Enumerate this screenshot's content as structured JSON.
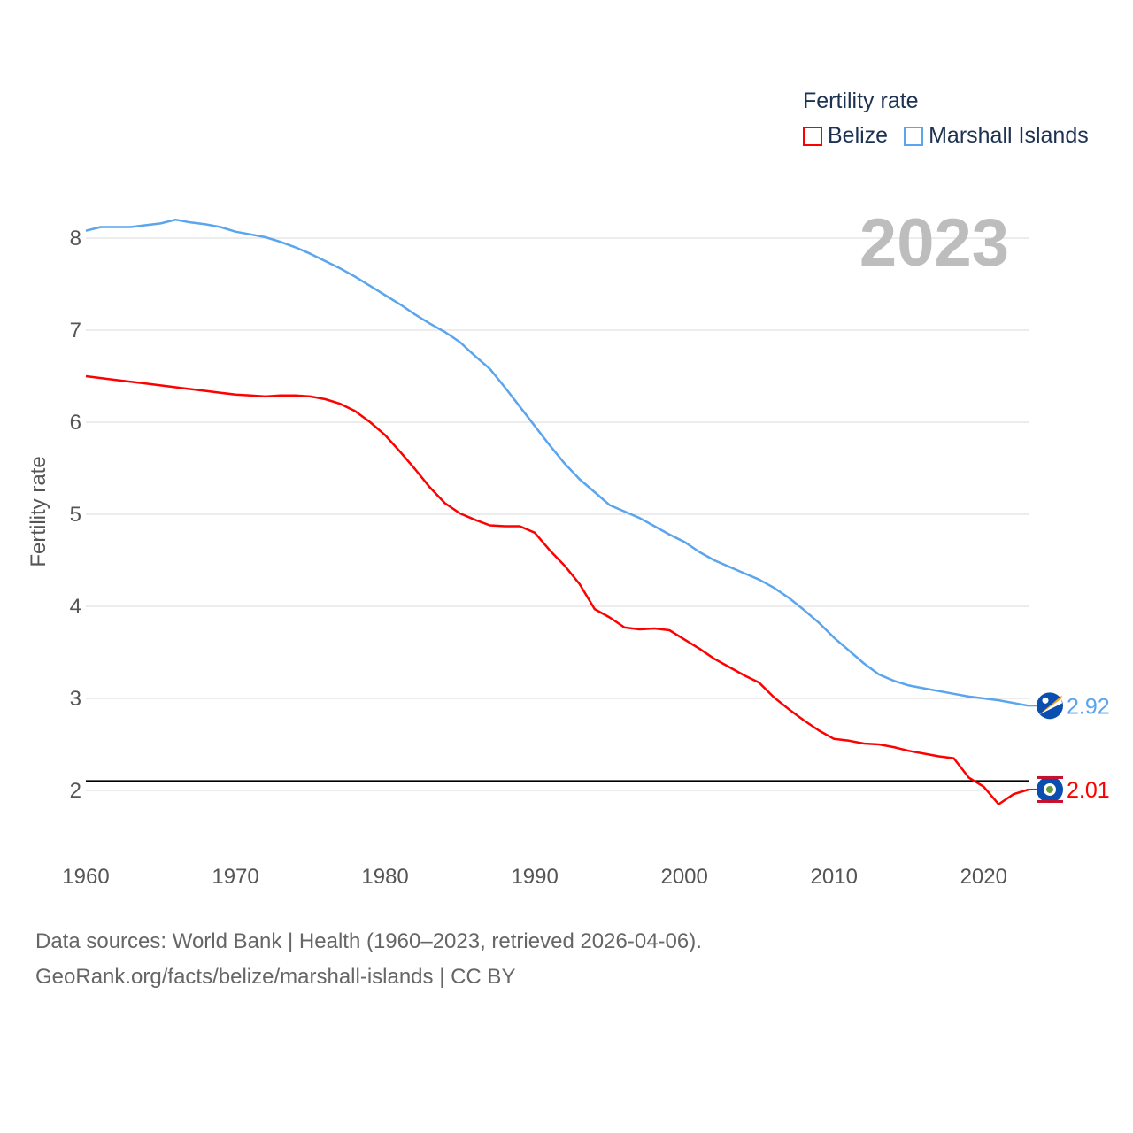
{
  "legend": {
    "title": "Fertility rate",
    "items": [
      {
        "label": "Belize",
        "color": "#ff0000"
      },
      {
        "label": "Marshall Islands",
        "color": "#5aa5ee"
      }
    ]
  },
  "year_label": "2023",
  "footer": {
    "line1": "Data sources: World Bank | Health (1960–2023, retrieved 2026-04-06).",
    "line2": "GeoRank.org/facts/belize/marshall-islands | CC BY"
  },
  "chart_data": {
    "type": "line",
    "title": "Fertility rate",
    "xlabel": "",
    "ylabel": "Fertility rate",
    "xlim": [
      1960,
      2023
    ],
    "ylim": [
      1.5,
      8.5
    ],
    "grid": true,
    "legend_position": "top-right",
    "x_ticks": [
      "1960",
      "1970",
      "1980",
      "1990",
      "2000",
      "2010",
      "2020"
    ],
    "y_ticks": [
      "2",
      "3",
      "4",
      "5",
      "6",
      "7",
      "8"
    ],
    "reference_line": {
      "value": 2.1,
      "color": "#000000"
    },
    "x": [
      1960,
      1961,
      1962,
      1963,
      1964,
      1965,
      1966,
      1967,
      1968,
      1969,
      1970,
      1971,
      1972,
      1973,
      1974,
      1975,
      1976,
      1977,
      1978,
      1979,
      1980,
      1981,
      1982,
      1983,
      1984,
      1985,
      1986,
      1987,
      1988,
      1989,
      1990,
      1991,
      1992,
      1993,
      1994,
      1995,
      1996,
      1997,
      1998,
      1999,
      2000,
      2001,
      2002,
      2003,
      2004,
      2005,
      2006,
      2007,
      2008,
      2009,
      2010,
      2011,
      2012,
      2013,
      2014,
      2015,
      2016,
      2017,
      2018,
      2019,
      2020,
      2021,
      2022,
      2023
    ],
    "series": [
      {
        "name": "Belize",
        "color": "#ff0000",
        "end_label": "2.01",
        "values": [
          6.5,
          6.48,
          6.46,
          6.44,
          6.42,
          6.4,
          6.38,
          6.36,
          6.34,
          6.32,
          6.3,
          6.29,
          6.28,
          6.29,
          6.29,
          6.28,
          6.25,
          6.2,
          6.12,
          6.0,
          5.86,
          5.68,
          5.49,
          5.29,
          5.12,
          5.01,
          4.94,
          4.88,
          4.87,
          4.87,
          4.8,
          4.61,
          4.44,
          4.24,
          3.97,
          3.88,
          3.77,
          3.75,
          3.76,
          3.74,
          3.64,
          3.54,
          3.43,
          3.34,
          3.25,
          3.17,
          3.01,
          2.88,
          2.76,
          2.65,
          2.56,
          2.54,
          2.51,
          2.5,
          2.47,
          2.43,
          2.4,
          2.37,
          2.35,
          2.14,
          2.04,
          1.85,
          1.96,
          2.01
        ]
      },
      {
        "name": "Marshall Islands",
        "color": "#5aa5ee",
        "end_label": "2.92",
        "values": [
          8.08,
          8.12,
          8.12,
          8.12,
          8.14,
          8.16,
          8.2,
          8.17,
          8.15,
          8.12,
          8.07,
          8.04,
          8.01,
          7.96,
          7.9,
          7.83,
          7.75,
          7.67,
          7.58,
          7.48,
          7.38,
          7.28,
          7.17,
          7.07,
          6.98,
          6.87,
          6.72,
          6.58,
          6.38,
          6.17,
          5.96,
          5.75,
          5.55,
          5.38,
          5.24,
          5.1,
          5.03,
          4.96,
          4.87,
          4.78,
          4.7,
          4.59,
          4.5,
          4.43,
          4.36,
          4.29,
          4.2,
          4.09,
          3.96,
          3.82,
          3.66,
          3.52,
          3.38,
          3.26,
          3.19,
          3.14,
          3.11,
          3.08,
          3.05,
          3.02,
          3.0,
          2.98,
          2.95,
          2.92
        ]
      }
    ]
  }
}
